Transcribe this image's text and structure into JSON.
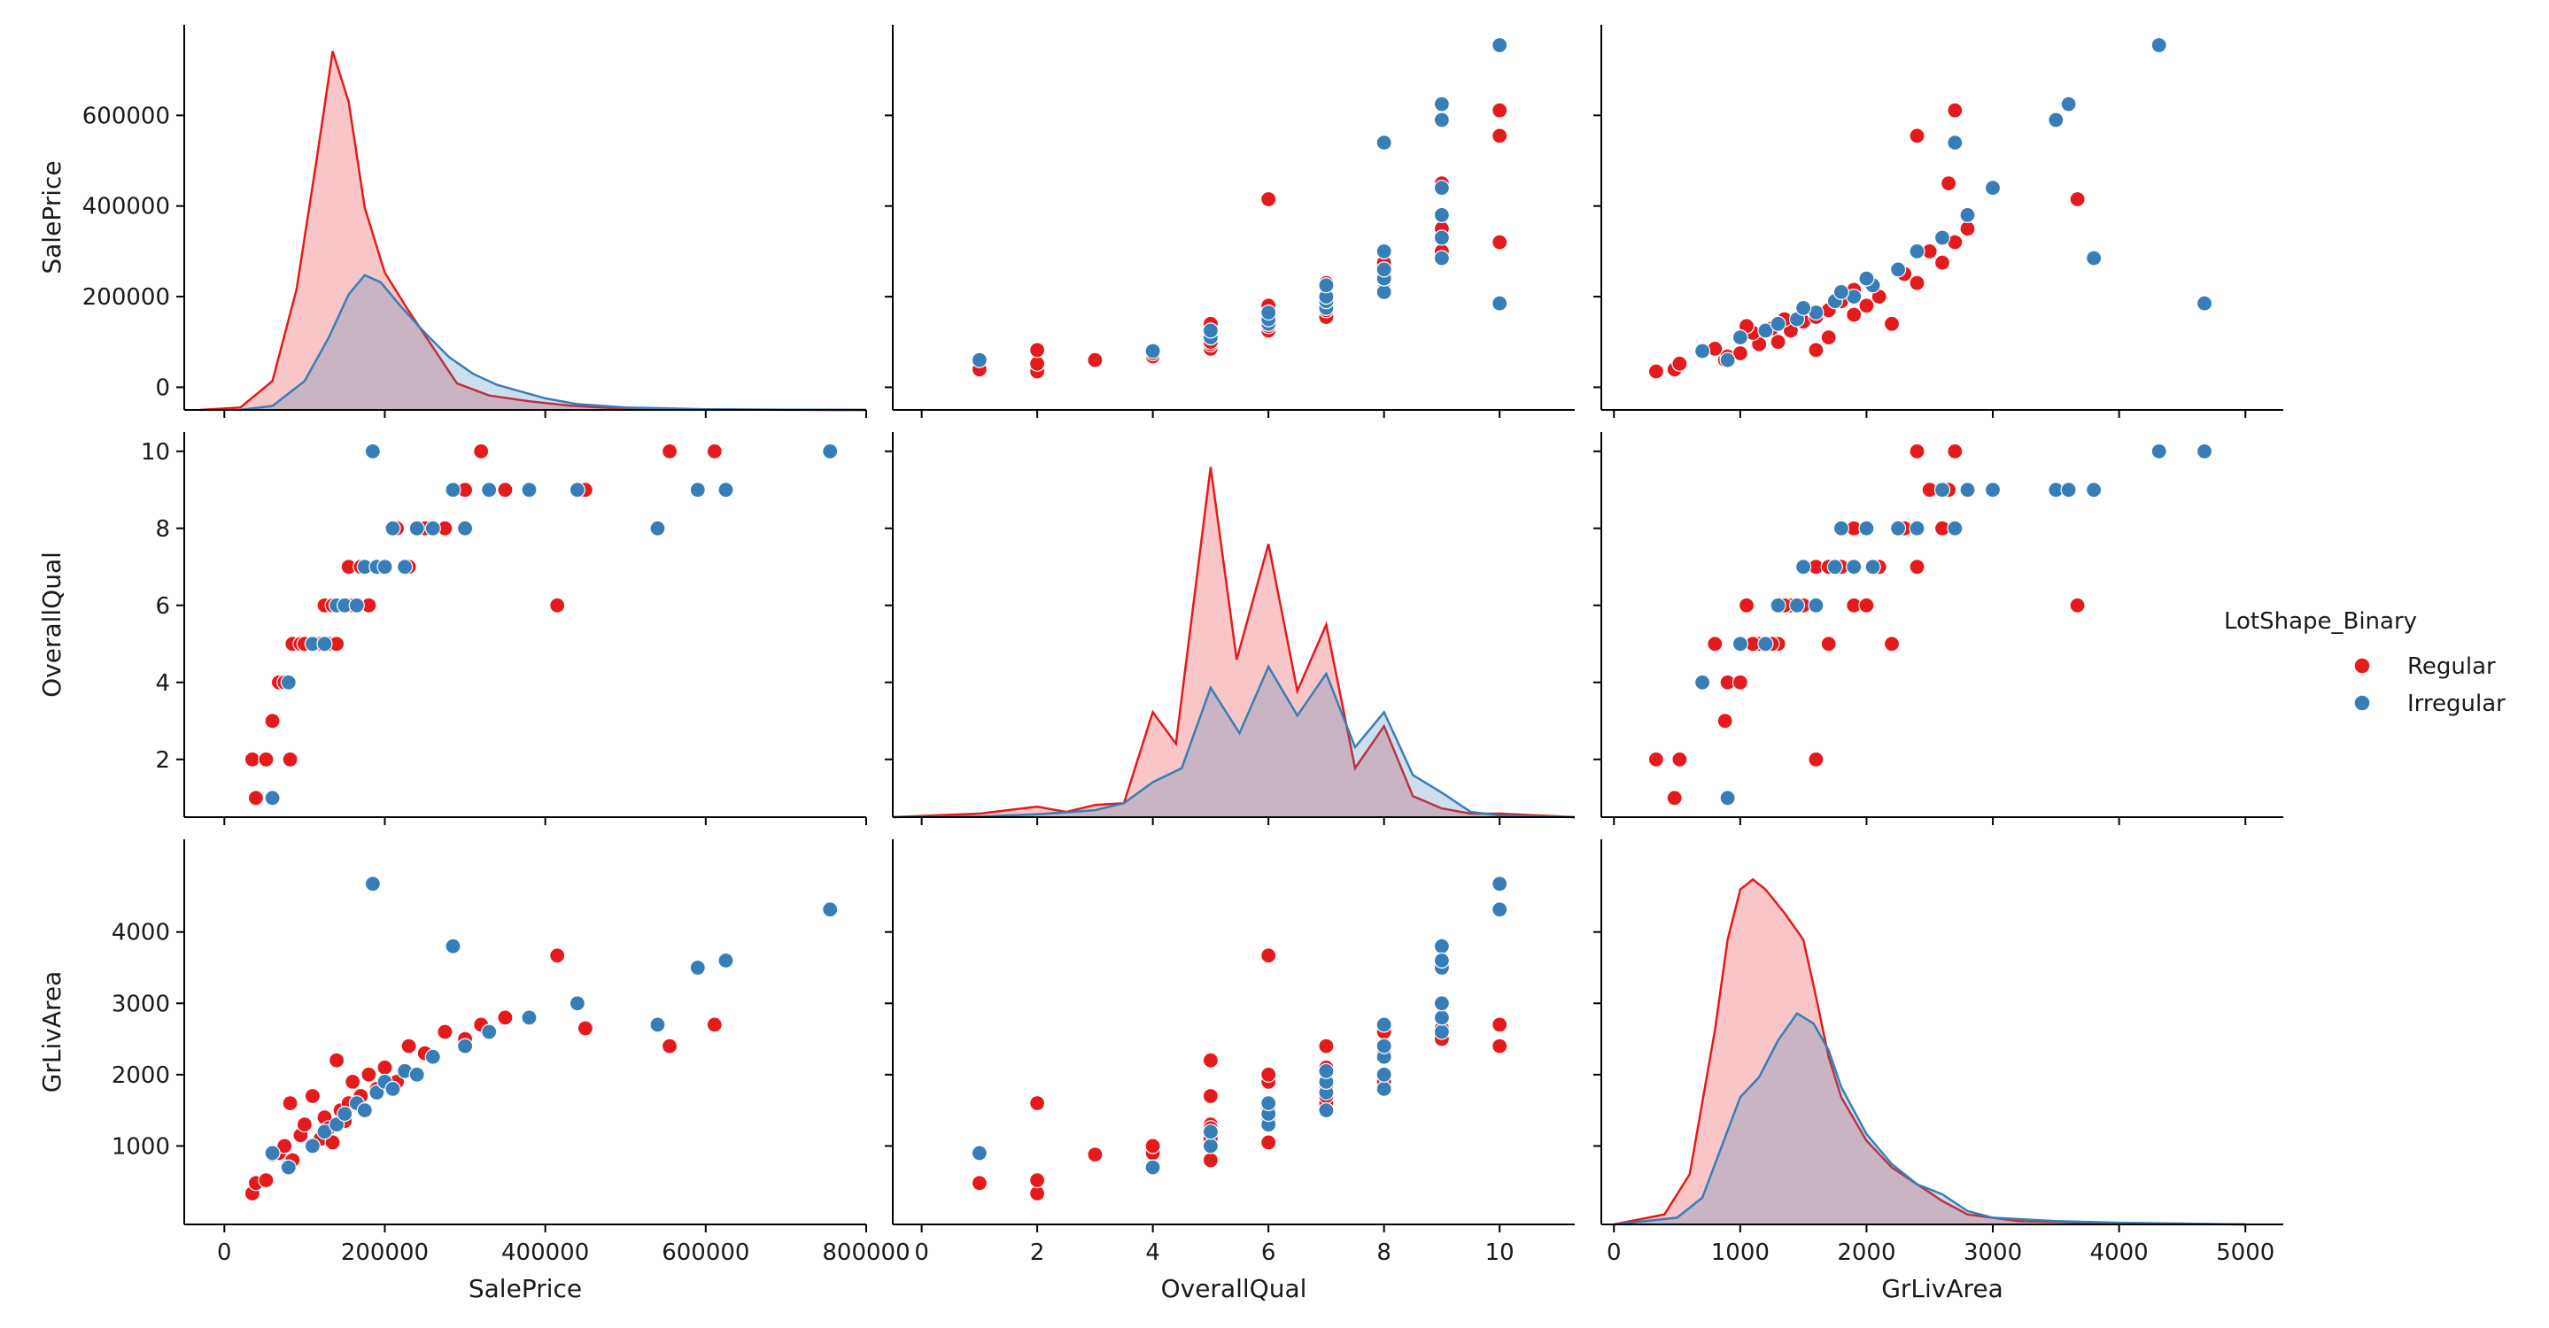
{
  "colors": {
    "Regular": "#e41a1c",
    "Irregular": "#377eb8"
  },
  "legend": {
    "title": "LotShape_Binary",
    "items": [
      {
        "label": "Regular",
        "color": "#e41a1c"
      },
      {
        "label": "Irregular",
        "color": "#377eb8"
      }
    ]
  },
  "chart_data": {
    "type": "scatter",
    "kind": "pairplot",
    "hue": "LotShape_Binary",
    "variables": [
      "SalePrice",
      "OverallQual",
      "GrLivArea"
    ],
    "axes": {
      "SalePrice": {
        "label": "SalePrice",
        "range": [
          -50000,
          800000
        ],
        "ticks_x": [
          0,
          200000,
          400000,
          600000,
          800000
        ],
        "ticks_y": [
          0,
          200000,
          400000,
          600000
        ]
      },
      "OverallQual": {
        "label": "OverallQual",
        "range": [
          0.5,
          10.5
        ],
        "x_range": [
          -0.5,
          11.3
        ],
        "ticks_x": [
          0,
          2,
          4,
          6,
          8,
          10
        ],
        "ticks_y": [
          2,
          4,
          6,
          8,
          10
        ]
      },
      "GrLivArea": {
        "label": "GrLivArea",
        "range": [
          -100,
          5300
        ],
        "ticks_x": [
          0,
          1000,
          2000,
          3000,
          4000,
          5000
        ],
        "ticks_y": [
          1000,
          2000,
          3000,
          4000
        ]
      }
    },
    "series": [
      {
        "name": "Regular",
        "color": "#e41a1c",
        "points": [
          {
            "SalePrice": 34900,
            "OverallQual": 2,
            "GrLivArea": 334
          },
          {
            "SalePrice": 39300,
            "OverallQual": 1,
            "GrLivArea": 480
          },
          {
            "SalePrice": 52000,
            "OverallQual": 2,
            "GrLivArea": 520
          },
          {
            "SalePrice": 60000,
            "OverallQual": 3,
            "GrLivArea": 880
          },
          {
            "SalePrice": 68000,
            "OverallQual": 4,
            "GrLivArea": 900
          },
          {
            "SalePrice": 75000,
            "OverallQual": 4,
            "GrLivArea": 1000
          },
          {
            "SalePrice": 82000,
            "OverallQual": 2,
            "GrLivArea": 1600
          },
          {
            "SalePrice": 85000,
            "OverallQual": 5,
            "GrLivArea": 800
          },
          {
            "SalePrice": 95000,
            "OverallQual": 5,
            "GrLivArea": 1150
          },
          {
            "SalePrice": 100000,
            "OverallQual": 5,
            "GrLivArea": 1300
          },
          {
            "SalePrice": 110000,
            "OverallQual": 5,
            "GrLivArea": 1700
          },
          {
            "SalePrice": 120000,
            "OverallQual": 5,
            "GrLivArea": 1100
          },
          {
            "SalePrice": 125000,
            "OverallQual": 6,
            "GrLivArea": 1400
          },
          {
            "SalePrice": 130000,
            "OverallQual": 5,
            "GrLivArea": 1250
          },
          {
            "SalePrice": 135000,
            "OverallQual": 6,
            "GrLivArea": 1050
          },
          {
            "SalePrice": 140000,
            "OverallQual": 5,
            "GrLivArea": 2200
          },
          {
            "SalePrice": 145000,
            "OverallQual": 6,
            "GrLivArea": 1500
          },
          {
            "SalePrice": 150000,
            "OverallQual": 6,
            "GrLivArea": 1350
          },
          {
            "SalePrice": 155000,
            "OverallQual": 7,
            "GrLivArea": 1600
          },
          {
            "SalePrice": 160000,
            "OverallQual": 6,
            "GrLivArea": 1900
          },
          {
            "SalePrice": 170000,
            "OverallQual": 7,
            "GrLivArea": 1700
          },
          {
            "SalePrice": 180000,
            "OverallQual": 6,
            "GrLivArea": 2000
          },
          {
            "SalePrice": 190000,
            "OverallQual": 7,
            "GrLivArea": 1800
          },
          {
            "SalePrice": 200000,
            "OverallQual": 7,
            "GrLivArea": 2100
          },
          {
            "SalePrice": 215000,
            "OverallQual": 8,
            "GrLivArea": 1900
          },
          {
            "SalePrice": 230000,
            "OverallQual": 7,
            "GrLivArea": 2400
          },
          {
            "SalePrice": 250000,
            "OverallQual": 8,
            "GrLivArea": 2300
          },
          {
            "SalePrice": 275000,
            "OverallQual": 8,
            "GrLivArea": 2600
          },
          {
            "SalePrice": 300000,
            "OverallQual": 9,
            "GrLivArea": 2500
          },
          {
            "SalePrice": 320000,
            "OverallQual": 10,
            "GrLivArea": 2700
          },
          {
            "SalePrice": 350000,
            "OverallQual": 9,
            "GrLivArea": 2800
          },
          {
            "SalePrice": 415000,
            "OverallQual": 6,
            "GrLivArea": 3670
          },
          {
            "SalePrice": 450000,
            "OverallQual": 9,
            "GrLivArea": 2650
          },
          {
            "SalePrice": 555000,
            "OverallQual": 10,
            "GrLivArea": 2400
          },
          {
            "SalePrice": 611000,
            "OverallQual": 10,
            "GrLivArea": 2700
          }
        ]
      },
      {
        "name": "Irregular",
        "color": "#377eb8",
        "points": [
          {
            "SalePrice": 60000,
            "OverallQual": 1,
            "GrLivArea": 900
          },
          {
            "SalePrice": 80000,
            "OverallQual": 4,
            "GrLivArea": 700
          },
          {
            "SalePrice": 110000,
            "OverallQual": 5,
            "GrLivArea": 1000
          },
          {
            "SalePrice": 125000,
            "OverallQual": 5,
            "GrLivArea": 1200
          },
          {
            "SalePrice": 140000,
            "OverallQual": 6,
            "GrLivArea": 1300
          },
          {
            "SalePrice": 150000,
            "OverallQual": 6,
            "GrLivArea": 1450
          },
          {
            "SalePrice": 165000,
            "OverallQual": 6,
            "GrLivArea": 1600
          },
          {
            "SalePrice": 175000,
            "OverallQual": 7,
            "GrLivArea": 1500
          },
          {
            "SalePrice": 185000,
            "OverallQual": 10,
            "GrLivArea": 4676
          },
          {
            "SalePrice": 190000,
            "OverallQual": 7,
            "GrLivArea": 1750
          },
          {
            "SalePrice": 200000,
            "OverallQual": 7,
            "GrLivArea": 1900
          },
          {
            "SalePrice": 210000,
            "OverallQual": 8,
            "GrLivArea": 1800
          },
          {
            "SalePrice": 225000,
            "OverallQual": 7,
            "GrLivArea": 2050
          },
          {
            "SalePrice": 240000,
            "OverallQual": 8,
            "GrLivArea": 2000
          },
          {
            "SalePrice": 260000,
            "OverallQual": 8,
            "GrLivArea": 2250
          },
          {
            "SalePrice": 285000,
            "OverallQual": 9,
            "GrLivArea": 3800
          },
          {
            "SalePrice": 300000,
            "OverallQual": 8,
            "GrLivArea": 2400
          },
          {
            "SalePrice": 330000,
            "OverallQual": 9,
            "GrLivArea": 2600
          },
          {
            "SalePrice": 380000,
            "OverallQual": 9,
            "GrLivArea": 2800
          },
          {
            "SalePrice": 440000,
            "OverallQual": 9,
            "GrLivArea": 3000
          },
          {
            "SalePrice": 540000,
            "OverallQual": 8,
            "GrLivArea": 2700
          },
          {
            "SalePrice": 590000,
            "OverallQual": 9,
            "GrLivArea": 3500
          },
          {
            "SalePrice": 625000,
            "OverallQual": 9,
            "GrLivArea": 3600
          },
          {
            "SalePrice": 755000,
            "OverallQual": 10,
            "GrLivArea": 4316
          }
        ]
      }
    ],
    "diagonal": {
      "type": "kde",
      "SalePrice": {
        "Regular": [
          [
            -30000,
            0
          ],
          [
            20000,
            5000
          ],
          [
            60000,
            60000
          ],
          [
            90000,
            250000
          ],
          [
            115000,
            520000
          ],
          [
            135000,
            745000
          ],
          [
            155000,
            640000
          ],
          [
            175000,
            420000
          ],
          [
            200000,
            285000
          ],
          [
            230000,
            205000
          ],
          [
            260000,
            130000
          ],
          [
            290000,
            55000
          ],
          [
            330000,
            30000
          ],
          [
            380000,
            18000
          ],
          [
            430000,
            9000
          ],
          [
            480000,
            4000
          ],
          [
            560000,
            1200
          ],
          [
            700000,
            200
          ],
          [
            800000,
            0
          ]
        ],
        "Irregular": [
          [
            20000,
            0
          ],
          [
            60000,
            8000
          ],
          [
            100000,
            60000
          ],
          [
            130000,
            150000
          ],
          [
            155000,
            240000
          ],
          [
            175000,
            280000
          ],
          [
            195000,
            265000
          ],
          [
            220000,
            215000
          ],
          [
            250000,
            160000
          ],
          [
            280000,
            110000
          ],
          [
            310000,
            75000
          ],
          [
            340000,
            52000
          ],
          [
            370000,
            38000
          ],
          [
            400000,
            24000
          ],
          [
            440000,
            12000
          ],
          [
            500000,
            5000
          ],
          [
            600000,
            1500
          ],
          [
            720000,
            300
          ],
          [
            800000,
            0
          ]
        ]
      },
      "OverallQual": {
        "Regular": [
          [
            -0.5,
            0
          ],
          [
            1.0,
            1.0
          ],
          [
            2.0,
            3.0
          ],
          [
            2.5,
            1.5
          ],
          [
            3.0,
            3.5
          ],
          [
            3.5,
            4.0
          ],
          [
            4.0,
            30.0
          ],
          [
            4.4,
            21.0
          ],
          [
            5.0,
            100.0
          ],
          [
            5.45,
            45.0
          ],
          [
            6.0,
            78.0
          ],
          [
            6.5,
            36.0
          ],
          [
            7.0,
            55.0
          ],
          [
            7.5,
            14.0
          ],
          [
            8.0,
            26.0
          ],
          [
            8.5,
            6.0
          ],
          [
            9.0,
            2.5
          ],
          [
            9.5,
            1.0
          ],
          [
            10.0,
            1.0
          ],
          [
            11.3,
            0
          ]
        ],
        "Irregular": [
          [
            -0.5,
            0
          ],
          [
            1.0,
            0.2
          ],
          [
            2.0,
            0.8
          ],
          [
            3.0,
            2.0
          ],
          [
            3.5,
            4.0
          ],
          [
            4.0,
            10.0
          ],
          [
            4.5,
            14.0
          ],
          [
            5.0,
            37.0
          ],
          [
            5.5,
            24.0
          ],
          [
            6.0,
            43.0
          ],
          [
            6.5,
            29.0
          ],
          [
            7.0,
            41.0
          ],
          [
            7.5,
            20.0
          ],
          [
            8.0,
            30.0
          ],
          [
            8.5,
            12.0
          ],
          [
            9.0,
            7.0
          ],
          [
            9.5,
            1.5
          ],
          [
            10.0,
            0.5
          ],
          [
            11.3,
            0
          ]
        ]
      },
      "GrLivArea": {
        "Regular": [
          [
            0,
            0
          ],
          [
            400,
            3
          ],
          [
            600,
            15
          ],
          [
            800,
            58
          ],
          [
            900,
            85
          ],
          [
            1000,
            100
          ],
          [
            1100,
            103
          ],
          [
            1200,
            100
          ],
          [
            1350,
            93
          ],
          [
            1500,
            85
          ],
          [
            1600,
            68
          ],
          [
            1700,
            50
          ],
          [
            1800,
            38
          ],
          [
            2000,
            25
          ],
          [
            2200,
            17
          ],
          [
            2400,
            12
          ],
          [
            2600,
            7
          ],
          [
            2800,
            3
          ],
          [
            3200,
            1
          ],
          [
            4000,
            0.3
          ],
          [
            5000,
            0
          ]
        ],
        "Irregular": [
          [
            0,
            0
          ],
          [
            500,
            2
          ],
          [
            700,
            8
          ],
          [
            900,
            28
          ],
          [
            1000,
            38
          ],
          [
            1150,
            44
          ],
          [
            1300,
            55
          ],
          [
            1450,
            63
          ],
          [
            1580,
            60
          ],
          [
            1700,
            52
          ],
          [
            1800,
            41
          ],
          [
            2000,
            27
          ],
          [
            2200,
            18
          ],
          [
            2400,
            12
          ],
          [
            2600,
            9
          ],
          [
            2800,
            4
          ],
          [
            3000,
            2
          ],
          [
            3500,
            1
          ],
          [
            4000,
            0.5
          ],
          [
            5000,
            0
          ]
        ]
      },
      "ylim_max": {
        "SalePrice": 800000,
        "OverallQual": 110,
        "GrLivArea": 115
      }
    }
  }
}
